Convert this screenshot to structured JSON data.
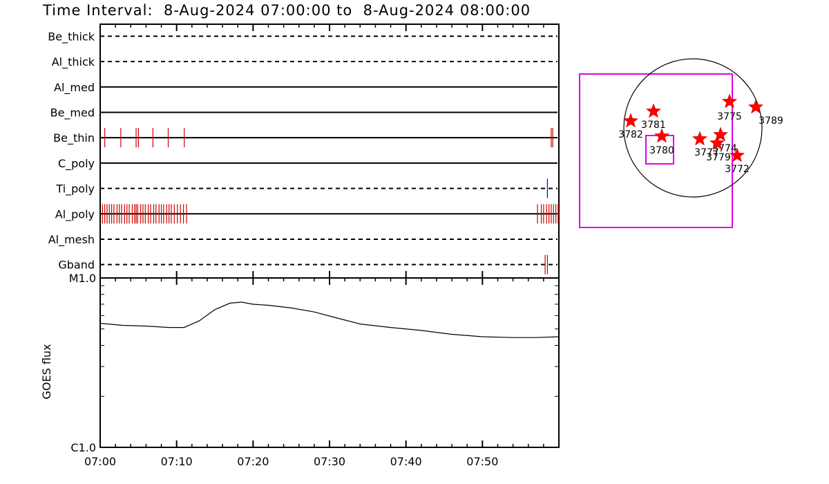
{
  "title": {
    "prefix": "Time Interval:",
    "start": "8-Aug-2024 07:00:00",
    "joiner": "to",
    "end": "8-Aug-2024 08:00:00"
  },
  "chart_data": [
    {
      "type": "event-timeline",
      "x_range_minutes": [
        0,
        60
      ],
      "x_ticks": [
        "07:00",
        "07:10",
        "07:20",
        "07:30",
        "07:40",
        "07:50"
      ],
      "channels": [
        {
          "name": "Be_thick",
          "style": "dashed",
          "events": []
        },
        {
          "name": "Al_thick",
          "style": "dashed",
          "events": []
        },
        {
          "name": "Al_med",
          "style": "solid",
          "events": []
        },
        {
          "name": "Be_med",
          "style": "solid",
          "events": []
        },
        {
          "name": "Be_thin",
          "style": "solid",
          "color": "#cc0000",
          "events": [
            0.6,
            2.7,
            4.7,
            5.0,
            6.9,
            8.9,
            11.0,
            59.0,
            59.2
          ]
        },
        {
          "name": "C_poly",
          "style": "solid",
          "events": []
        },
        {
          "name": "Ti_poly",
          "style": "dashed",
          "color": "#0000cc",
          "events": [
            58.5
          ]
        },
        {
          "name": "Al_poly",
          "style": "solid",
          "color": "#cc0000",
          "events": [
            0.3,
            0.6,
            0.9,
            1.2,
            1.5,
            1.8,
            2.2,
            2.5,
            2.8,
            3.2,
            3.5,
            3.8,
            4.2,
            4.5,
            4.7,
            4.9,
            5.3,
            5.6,
            5.9,
            6.3,
            6.6,
            7.0,
            7.3,
            7.7,
            8.0,
            8.3,
            8.7,
            9.0,
            9.3,
            9.7,
            10.1,
            10.5,
            10.9,
            11.3,
            57.2,
            57.7,
            58.0,
            58.4,
            58.7,
            59.0,
            59.3,
            59.6,
            59.9
          ]
        },
        {
          "name": "Al_mesh",
          "style": "dashed",
          "events": []
        },
        {
          "name": "Gband",
          "style": "dashed",
          "color": "#cc0000",
          "events": [
            58.2,
            58.5
          ]
        }
      ]
    },
    {
      "type": "line",
      "ylabel": "GOES flux",
      "y_scale": "log",
      "y_ticks": [
        "C1.0",
        "M1.0"
      ],
      "ylim": [
        1e-06,
        1e-05
      ],
      "x_range_minutes": [
        0,
        60
      ],
      "x_ticks": [
        "07:00",
        "07:10",
        "07:20",
        "07:30",
        "07:40",
        "07:50"
      ],
      "series": [
        {
          "x": [
            0,
            3,
            6,
            9,
            11,
            13,
            15,
            17,
            18.5,
            20,
            22,
            25,
            28,
            31,
            34,
            38,
            42,
            46,
            50,
            54,
            57,
            60
          ],
          "y": [
            5.4e-06,
            5.25e-06,
            5.2e-06,
            5.1e-06,
            5.1e-06,
            5.6e-06,
            6.5e-06,
            7.1e-06,
            7.2e-06,
            7e-06,
            6.9e-06,
            6.65e-06,
            6.3e-06,
            5.8e-06,
            5.35e-06,
            5.1e-06,
            4.9e-06,
            4.65e-06,
            4.5e-06,
            4.45e-06,
            4.45e-06,
            4.5e-06
          ]
        }
      ]
    },
    {
      "type": "scatter",
      "note_type": "solar-disk",
      "points": [
        {
          "label": "3789",
          "x": 0.91,
          "y": 0.3
        },
        {
          "label": "3775",
          "x": 0.53,
          "y": 0.38
        },
        {
          "label": "3781",
          "x": -0.57,
          "y": 0.24
        },
        {
          "label": "3782",
          "x": -0.9,
          "y": 0.1
        },
        {
          "label": "3780",
          "x": -0.45,
          "y": -0.12
        },
        {
          "label": "3777",
          "x": 0.1,
          "y": -0.16
        },
        {
          "label": "3774",
          "x": 0.4,
          "y": -0.1
        },
        {
          "label": "3779",
          "x": 0.35,
          "y": -0.22
        },
        {
          "label": "3772",
          "x": 0.64,
          "y": -0.4
        }
      ]
    }
  ]
}
